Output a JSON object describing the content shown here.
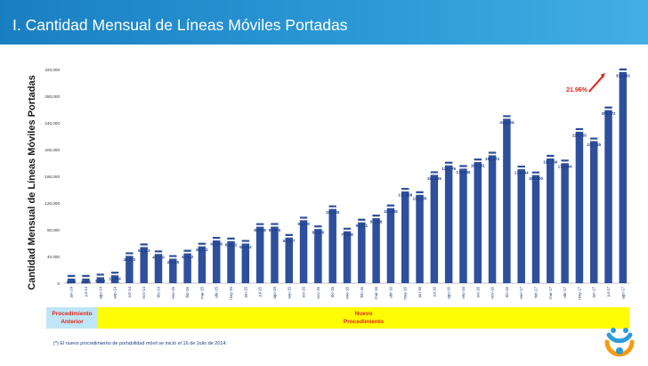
{
  "header": {
    "title": "I. Cantidad Mensual de Líneas Móviles Portadas"
  },
  "bands": {
    "left_line1": "Procedimiento",
    "left_line2": "Anterior",
    "right_line1": "Nuevo",
    "right_line2": "Procedimiento"
  },
  "footnote": "(*) El nuevo procedimiento de portabilidad móvil se inició el 16 de Julio de 2014.",
  "colors": {
    "bar": "#2e4f9c",
    "header": "#1a7fc1",
    "band_left": "#bfe6f6",
    "band_right": "#fffc04",
    "annotation": "#e1261c"
  },
  "chart_data": {
    "type": "bar",
    "ylabel": "Cantidad Mensual de Líneas Móviles Portadas",
    "ylim": [
      0,
      320000
    ],
    "yticks": [
      "0",
      "40,000",
      "80,000",
      "120,000",
      "160,000",
      "200,000",
      "240,000",
      "280,000",
      "320,000"
    ],
    "categories": [
      "jun-14",
      "jul-14",
      "ago-14",
      "sep-14",
      "oct-14",
      "nov-14",
      "dic-14",
      "ene-15",
      "feb-15",
      "mar-15",
      "abr-15",
      "may-15",
      "jun-15",
      "jul-15",
      "ago-15",
      "sep-15",
      "oct-15",
      "nov-15",
      "dic-15",
      "ene-16",
      "feb-16",
      "mar-16",
      "abr-16",
      "may-16",
      "jun-16",
      "jul-16",
      "ago-16",
      "sep-16",
      "oct-16",
      "nov-16",
      "dic-16",
      "ene-17",
      "feb-17",
      "mar-17",
      "abr-17",
      "may-17",
      "jun-17",
      "jul-17",
      "ago-17"
    ],
    "values": [
      6947,
      6986,
      8914,
      11844,
      40883,
      54103,
      43710,
      36735,
      44642,
      55142,
      64016,
      62922,
      59374,
      84536,
      84695,
      68347,
      94230,
      81136,
      111205,
      77708,
      91141,
      97348,
      112455,
      137368,
      132305,
      162186,
      176476,
      171496,
      181291,
      191474,
      246234,
      170684,
      161900,
      186766,
      179684,
      226765,
      212745,
      259172,
      316092
    ],
    "labels": [
      "6,947",
      "6,986",
      "8,914",
      "11,844",
      "40,883",
      "54,103",
      "43,710",
      "36,735",
      "44,642",
      "55,142",
      "64,016",
      "62,922",
      "59,374",
      "84,536",
      "84,695",
      "68,347",
      "94,230",
      "81,136",
      "111,205",
      "77,708",
      "91,141",
      "97,348",
      "112,455",
      "137,368",
      "132,305",
      "162,186",
      "176,476",
      "171,496",
      "181,291",
      "191,474",
      "246,234",
      "170,684",
      "161,900",
      "186,766",
      "179,684",
      "226,765",
      "212,745",
      "259,172",
      "316,092"
    ],
    "annotation": "21.96%"
  }
}
